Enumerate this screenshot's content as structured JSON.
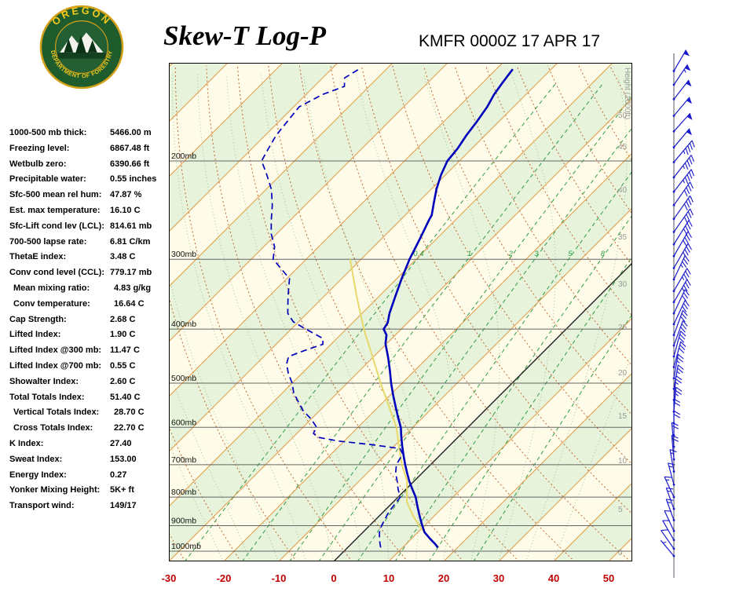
{
  "header": {
    "title": "Skew-T Log-P",
    "station_line": "KMFR 0000Z 17 APR 17"
  },
  "logo": {
    "arc_top": "OREGON",
    "arc_bottom": "DEPARTMENT OF FORESTRY"
  },
  "stats": [
    {
      "label": "1000-500 mb thick:",
      "value": "5466.00 m",
      "indent": false
    },
    {
      "label": "Freezing level:",
      "value": "6867.48 ft",
      "indent": false
    },
    {
      "label": "Wetbulb zero:",
      "value": "6390.66 ft",
      "indent": false
    },
    {
      "label": "Precipitable water:",
      "value": "0.55 inches",
      "indent": false
    },
    {
      "label": "Sfc-500 mean rel hum:",
      "value": "47.87 %",
      "indent": false
    },
    {
      "label": "Est. max temperature:",
      "value": "16.10 C",
      "indent": false
    },
    {
      "label": "Sfc-Lift cond lev (LCL):",
      "value": "814.61 mb",
      "indent": false
    },
    {
      "label": "700-500 lapse rate:",
      "value": "6.81 C/km",
      "indent": false
    },
    {
      "label": "ThetaE index:",
      "value": "3.48 C",
      "indent": false
    },
    {
      "label": "Conv cond level (CCL):",
      "value": "779.17 mb",
      "indent": false
    },
    {
      "label": "Mean mixing ratio:",
      "value": "4.83 g/kg",
      "indent": true
    },
    {
      "label": "Conv temperature:",
      "value": "16.64 C",
      "indent": true
    },
    {
      "label": "Cap Strength:",
      "value": "2.68 C",
      "indent": false
    },
    {
      "label": "Lifted Index:",
      "value": "1.90 C",
      "indent": false
    },
    {
      "label": "Lifted Index @300 mb:",
      "value": "11.47 C",
      "indent": false
    },
    {
      "label": "Lifted Index @700 mb:",
      "value": "0.55 C",
      "indent": false
    },
    {
      "label": "Showalter Index:",
      "value": "2.60 C",
      "indent": false
    },
    {
      "label": "Total Totals Index:",
      "value": "51.40 C",
      "indent": false
    },
    {
      "label": "Vertical Totals Index:",
      "value": "28.70 C",
      "indent": true
    },
    {
      "label": "Cross Totals Index:",
      "value": "22.70 C",
      "indent": true
    },
    {
      "label": "K Index:",
      "value": "27.40",
      "indent": false
    },
    {
      "label": "Sweat Index:",
      "value": "153.00",
      "indent": false
    },
    {
      "label": "Energy Index:",
      "value": "0.27",
      "indent": false
    },
    {
      "label": "Yonker Mixing Height:",
      "value": "5K+ ft",
      "indent": false
    },
    {
      "label": "Transport wind:",
      "value": "149/17",
      "indent": false
    }
  ],
  "chart_data": {
    "type": "skewt-log-p",
    "title": "Skew-T Log-P",
    "station": "KMFR",
    "valid_time": "0000Z 17 APR 17",
    "pressure_axis": {
      "unit": "mb",
      "labels": [
        200,
        300,
        400,
        500,
        600,
        700,
        800,
        900,
        1000
      ],
      "range": [
        135,
        1045
      ]
    },
    "temp_axis": {
      "unit": "C",
      "ticks": [
        -30,
        -20,
        -10,
        0,
        10,
        20,
        30,
        40,
        50
      ],
      "color": "#c00000"
    },
    "height_axis": {
      "title": "Height (1000ft)",
      "color": "#999999",
      "labels": [
        [
          "50",
          70
        ],
        [
          "45",
          110
        ],
        [
          "40",
          165
        ],
        [
          "35",
          225
        ],
        [
          "30",
          285
        ],
        [
          "25",
          340
        ],
        [
          "20",
          398
        ],
        [
          "15",
          453
        ],
        [
          "10",
          510
        ],
        [
          "5",
          572
        ],
        [
          "0",
          627
        ]
      ]
    },
    "isotherms": {
      "step": 10,
      "color": "#e09a4b",
      "zero_line_color": "#222222"
    },
    "dry_adiabats": {
      "color": "#c06a38"
    },
    "moist_adiabats": {
      "color": "#9cc89c"
    },
    "mixing_ratio_lines": {
      "values": [
        0.4,
        1,
        2,
        3,
        5,
        8,
        12,
        20
      ],
      "labeled": [
        0.4,
        1,
        2,
        3,
        5,
        8
      ],
      "label_pressure": 300,
      "color": "#2f9c46"
    },
    "background": {
      "band_green": "#e7f3da",
      "band_cream": "#fefce8"
    },
    "temperature_profile": {
      "color": "#0000bb",
      "points": [
        [
          985,
          16.4
        ],
        [
          970,
          15.2
        ],
        [
          950,
          13.4
        ],
        [
          925,
          11.2
        ],
        [
          900,
          9.6
        ],
        [
          875,
          8.0
        ],
        [
          850,
          6.4
        ],
        [
          825,
          4.8
        ],
        [
          800,
          3.2
        ],
        [
          775,
          1.2
        ],
        [
          750,
          -0.8
        ],
        [
          725,
          -2.7
        ],
        [
          700,
          -4.6
        ],
        [
          675,
          -6.5
        ],
        [
          650,
          -8.4
        ],
        [
          625,
          -10.3
        ],
        [
          600,
          -12.2
        ],
        [
          575,
          -14.6
        ],
        [
          550,
          -17.0
        ],
        [
          525,
          -19.5
        ],
        [
          500,
          -22.0
        ],
        [
          475,
          -24.5
        ],
        [
          450,
          -27.2
        ],
        [
          425,
          -30.2
        ],
        [
          410,
          -31.6
        ],
        [
          400,
          -33.2
        ],
        [
          390,
          -33.6
        ],
        [
          375,
          -35.0
        ],
        [
          350,
          -37.0
        ],
        [
          325,
          -39.1
        ],
        [
          300,
          -41.2
        ],
        [
          285,
          -42.3
        ],
        [
          270,
          -43.5
        ],
        [
          255,
          -44.8
        ],
        [
          250,
          -45.2
        ],
        [
          238,
          -47.0
        ],
        [
          225,
          -49.0
        ],
        [
          212,
          -50.8
        ],
        [
          200,
          -52.2
        ],
        [
          190,
          -52.6
        ],
        [
          180,
          -53.4
        ],
        [
          170,
          -54.0
        ],
        [
          160,
          -54.8
        ],
        [
          152,
          -55.8
        ],
        [
          145,
          -56.4
        ],
        [
          137,
          -57.0
        ]
      ]
    },
    "dewpoint_profile": {
      "color": "#0000bb",
      "points": [
        [
          985,
          6.0
        ],
        [
          970,
          5.2
        ],
        [
          950,
          4.2
        ],
        [
          925,
          3.0
        ],
        [
          900,
          2.2
        ],
        [
          875,
          1.6
        ],
        [
          850,
          1.0
        ],
        [
          825,
          0.7
        ],
        [
          800,
          0.4
        ],
        [
          775,
          -1.4
        ],
        [
          750,
          -3.0
        ],
        [
          725,
          -4.8
        ],
        [
          700,
          -6.2
        ],
        [
          685,
          -6.6
        ],
        [
          670,
          -7.0
        ],
        [
          655,
          -8.5
        ],
        [
          645,
          -14.0
        ],
        [
          635,
          -21.0
        ],
        [
          625,
          -25.5
        ],
        [
          615,
          -27.0
        ],
        [
          600,
          -27.5
        ],
        [
          580,
          -30.0
        ],
        [
          560,
          -33.0
        ],
        [
          540,
          -35.5
        ],
        [
          520,
          -38.0
        ],
        [
          500,
          -40.0
        ],
        [
          480,
          -42.5
        ],
        [
          462,
          -44.5
        ],
        [
          448,
          -45.5
        ],
        [
          436,
          -43.5
        ],
        [
          426,
          -41.5
        ],
        [
          416,
          -42.5
        ],
        [
          406,
          -45.5
        ],
        [
          398,
          -48.0
        ],
        [
          388,
          -51.0
        ],
        [
          375,
          -53.5
        ],
        [
          350,
          -56.5
        ],
        [
          325,
          -59.5
        ],
        [
          300,
          -66.0
        ],
        [
          285,
          -68.0
        ],
        [
          270,
          -71.0
        ],
        [
          255,
          -73.5
        ],
        [
          240,
          -76.0
        ],
        [
          225,
          -79.0
        ],
        [
          210,
          -83.0
        ],
        [
          200,
          -86.0
        ],
        [
          190,
          -87.0
        ],
        [
          180,
          -88.0
        ],
        [
          170,
          -88.5
        ],
        [
          160,
          -89.0
        ],
        [
          152,
          -87.0
        ],
        [
          147,
          -84.5
        ],
        [
          142,
          -86.0
        ],
        [
          137,
          -85.0
        ]
      ]
    },
    "parcel_profile": {
      "color": "#e6d96a",
      "points": [
        [
          985,
          16.6
        ],
        [
          950,
          13.4
        ],
        [
          900,
          9.0
        ],
        [
          860,
          5.8
        ],
        [
          815,
          2.4
        ],
        [
          775,
          0.2
        ],
        [
          750,
          -1.2
        ],
        [
          700,
          -5.2
        ],
        [
          650,
          -9.0
        ],
        [
          600,
          -13.0
        ],
        [
          550,
          -18.2
        ],
        [
          500,
          -23.9
        ],
        [
          450,
          -30.0
        ],
        [
          400,
          -36.8
        ],
        [
          350,
          -44.0
        ],
        [
          300,
          -52.0
        ]
      ]
    },
    "wind_barbs": {
      "color": "#1a1acc",
      "levels": [
        [
          1020,
          140,
          5
        ],
        [
          990,
          145,
          8
        ],
        [
          955,
          150,
          10
        ],
        [
          920,
          155,
          12
        ],
        [
          880,
          160,
          15
        ],
        [
          840,
          160,
          15
        ],
        [
          800,
          155,
          15
        ],
        [
          760,
          165,
          15
        ],
        [
          720,
          170,
          17
        ],
        [
          685,
          175,
          18
        ],
        [
          650,
          175,
          20
        ],
        [
          620,
          180,
          20
        ],
        [
          590,
          180,
          22
        ],
        [
          562,
          185,
          25
        ],
        [
          536,
          185,
          25
        ],
        [
          512,
          190,
          25
        ],
        [
          490,
          190,
          27
        ],
        [
          468,
          195,
          28
        ],
        [
          448,
          195,
          30
        ],
        [
          428,
          200,
          30
        ],
        [
          410,
          200,
          30
        ],
        [
          392,
          205,
          32
        ],
        [
          375,
          205,
          32
        ],
        [
          358,
          210,
          35
        ],
        [
          342,
          210,
          35
        ],
        [
          326,
          205,
          35
        ],
        [
          311,
          210,
          38
        ],
        [
          296,
          210,
          38
        ],
        [
          282,
          212,
          40
        ],
        [
          268,
          215,
          40
        ],
        [
          254,
          215,
          42
        ],
        [
          240,
          215,
          42
        ],
        [
          227,
          218,
          45
        ],
        [
          214,
          218,
          45
        ],
        [
          201,
          220,
          45
        ],
        [
          189,
          220,
          48
        ],
        [
          177,
          222,
          50
        ],
        [
          166,
          220,
          50
        ],
        [
          155,
          218,
          52
        ],
        [
          146,
          214,
          55
        ],
        [
          138,
          210,
          50
        ]
      ]
    }
  }
}
